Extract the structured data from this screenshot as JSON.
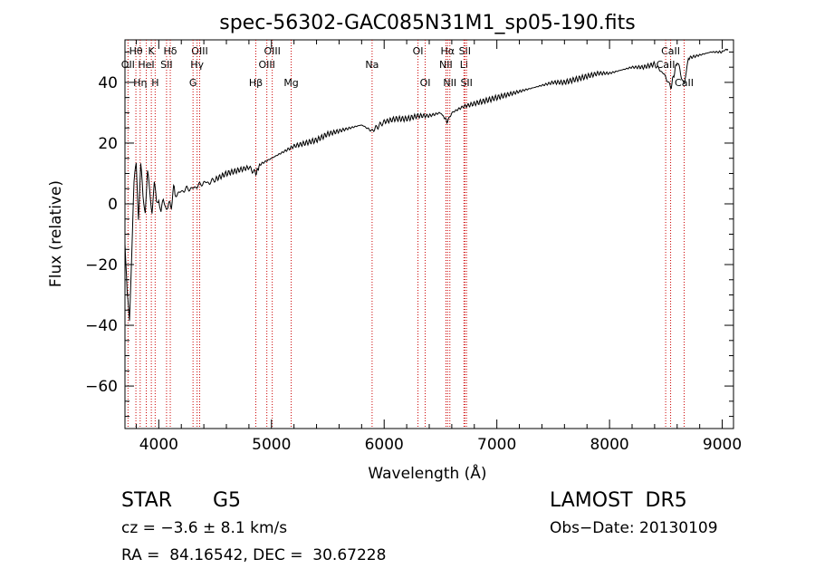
{
  "chart_data": {
    "type": "line",
    "title": "spec-56302-GAC085N31M1_sp05-190.fits",
    "xlabel": "Wavelength (Å)",
    "ylabel": "Flux (relative)",
    "xlim": [
      3700,
      9100
    ],
    "ylim": [
      -74,
      54
    ],
    "xticks": [
      4000,
      5000,
      6000,
      7000,
      8000,
      9000
    ],
    "yticks": [
      -60,
      -40,
      -20,
      0,
      20,
      40
    ],
    "grid": false,
    "series": [
      {
        "color": "#000000",
        "x": [
          3700,
          3720,
          3740,
          3760,
          3780,
          3800,
          3820,
          3840,
          3860,
          3880,
          3900,
          3920,
          3940,
          3960,
          3980,
          4000,
          4020,
          4040,
          4060,
          4080,
          4100,
          4150,
          4200,
          4250,
          4300,
          4350,
          4400,
          4450,
          4500,
          4600,
          4700,
          4800,
          4861,
          4900,
          5000,
          5100,
          5200,
          5300,
          5400,
          5500,
          5600,
          5700,
          5800,
          5890,
          6000,
          6100,
          6200,
          6300,
          6400,
          6500,
          6563,
          6600,
          6700,
          6800,
          6900,
          7000,
          7100,
          7200,
          7300,
          7400,
          7500,
          7600,
          7700,
          7800,
          7900,
          8000,
          8100,
          8200,
          8300,
          8400,
          8498,
          8542,
          8600,
          8662,
          8700,
          8800,
          8900,
          9000,
          9050
        ],
        "y": [
          -10,
          -30,
          -38,
          -15,
          5,
          12,
          -5,
          10,
          0,
          -3,
          8,
          2,
          -2,
          6,
          0,
          4,
          -2,
          2,
          3,
          0,
          1,
          3,
          4,
          5,
          5,
          6,
          7,
          7,
          8,
          10,
          11,
          12,
          10,
          13,
          15,
          17,
          19,
          20,
          21,
          23,
          24,
          25,
          26,
          24,
          27,
          28,
          28,
          29,
          29,
          30,
          27,
          30,
          32,
          33,
          34,
          35,
          36,
          37,
          38,
          39,
          40,
          40,
          41,
          42,
          43,
          43,
          44,
          45,
          45,
          46,
          42,
          38,
          47,
          39,
          48,
          49,
          50,
          50,
          51
        ]
      }
    ],
    "annotations": {
      "line_labels": [
        {
          "text": "Hθ",
          "x": 3797,
          "row": 1
        },
        {
          "text": "K",
          "x": 3934,
          "row": 1
        },
        {
          "text": "Hδ",
          "x": 4102,
          "row": 1
        },
        {
          "text": "OIII",
          "x": 4363,
          "row": 1
        },
        {
          "text": "OIII",
          "x": 5007,
          "row": 1
        },
        {
          "text": "OI",
          "x": 6300,
          "row": 1
        },
        {
          "text": "Hα",
          "x": 6563,
          "row": 1
        },
        {
          "text": "SII",
          "x": 6716,
          "row": 1
        },
        {
          "text": "CaII",
          "x": 8542,
          "row": 1
        },
        {
          "text": "OII",
          "x": 3727,
          "row": 2
        },
        {
          "text": "HeI",
          "x": 3889,
          "row": 2
        },
        {
          "text": "SII",
          "x": 4069,
          "row": 2
        },
        {
          "text": "Hγ",
          "x": 4340,
          "row": 2
        },
        {
          "text": "OIII",
          "x": 4959,
          "row": 2
        },
        {
          "text": "Na",
          "x": 5893,
          "row": 2
        },
        {
          "text": "NII",
          "x": 6548,
          "row": 2
        },
        {
          "text": "Li",
          "x": 6708,
          "row": 2
        },
        {
          "text": "CaII",
          "x": 8498,
          "row": 2
        },
        {
          "text": "Hη",
          "x": 3835,
          "row": 3
        },
        {
          "text": "H",
          "x": 3968,
          "row": 3
        },
        {
          "text": "G",
          "x": 4304,
          "row": 3
        },
        {
          "text": "Hβ",
          "x": 4861,
          "row": 3
        },
        {
          "text": "Mg",
          "x": 5175,
          "row": 3
        },
        {
          "text": "OI",
          "x": 6364,
          "row": 3
        },
        {
          "text": "NII",
          "x": 6583,
          "row": 3
        },
        {
          "text": "SII",
          "x": 6731,
          "row": 3
        },
        {
          "text": "CaII",
          "x": 8662,
          "row": 3
        }
      ],
      "line_color": "#cc0000"
    }
  },
  "info": {
    "class": "STAR",
    "subclass": "G5",
    "survey": "LAMOST  DR5",
    "cz": "cz = −3.6 ± 8.1 km/s",
    "obs_date": "Obs−Date: 20130109",
    "radec": "RA =  84.16542, DEC =  30.67228"
  }
}
